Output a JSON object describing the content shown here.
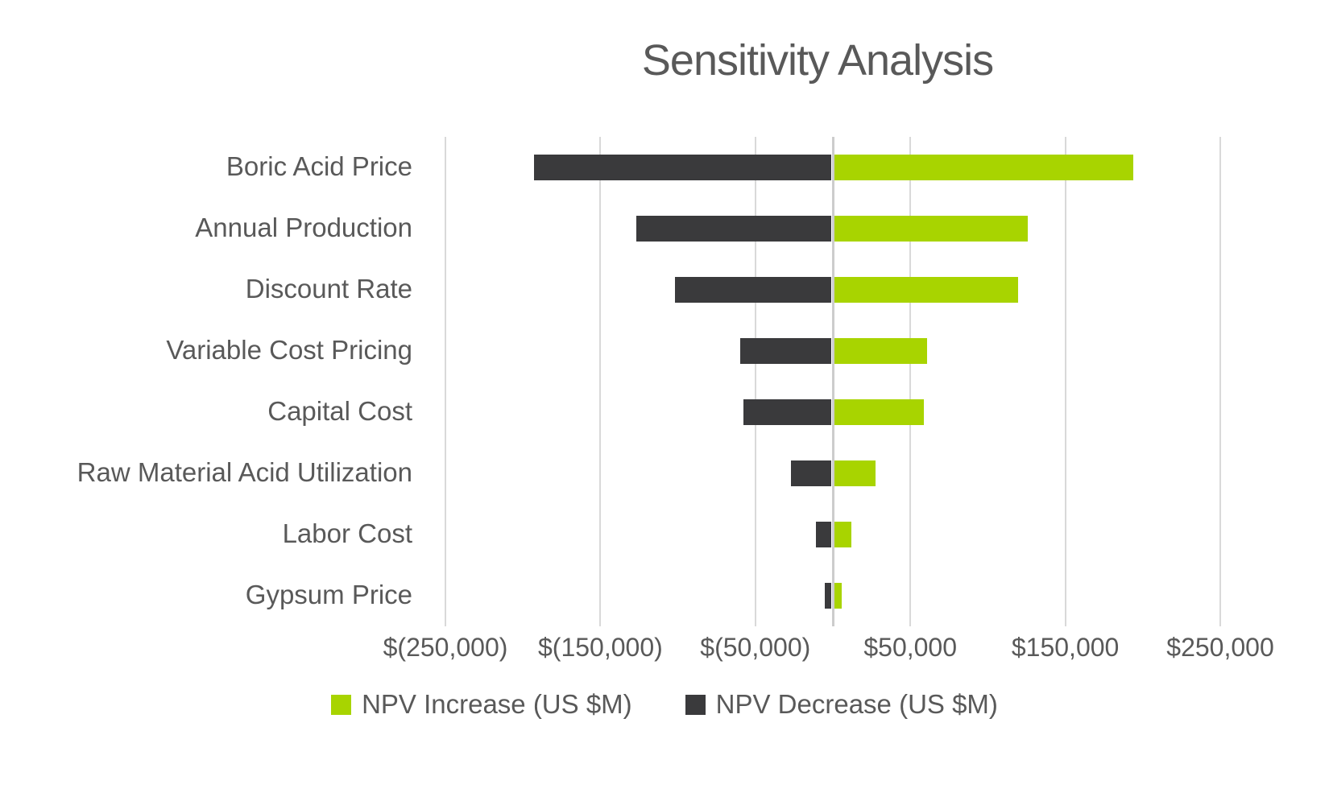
{
  "title": "Sensitivity Analysis",
  "colors": {
    "increase": "#a8d400",
    "decrease": "#3a3a3c",
    "gridline": "#d9d9d9",
    "zero_axis": "#cccccc",
    "text": "#595959"
  },
  "chart_data": {
    "type": "bar",
    "orientation": "horizontal-tornado",
    "title": "Sensitivity Analysis",
    "categories": [
      "Boric Acid Price",
      "Annual Production",
      "Discount Rate",
      "Variable Cost Pricing",
      "Capital Cost",
      "Raw Material Acid Utilization",
      "Labor Cost",
      "Gypsum Price"
    ],
    "series": [
      {
        "name": "NPV Increase (US $M)",
        "color": "#a8d400",
        "values": [
          193000,
          125000,
          119000,
          60000,
          58000,
          27000,
          11000,
          4700
        ]
      },
      {
        "name": "NPV Decrease (US $M)",
        "color": "#3a3a3c",
        "values": [
          -192000,
          -126000,
          -101000,
          -59000,
          -57000,
          -26000,
          -10000,
          -4300
        ]
      }
    ],
    "xlabel": "",
    "ylabel": "",
    "xlim": [
      -250000,
      250000
    ],
    "x_ticks": [
      {
        "value": -250000,
        "label": "$(250,000)"
      },
      {
        "value": -150000,
        "label": "$(150,000)"
      },
      {
        "value": -50000,
        "label": "$(50,000)"
      },
      {
        "value": 50000,
        "label": "$50,000"
      },
      {
        "value": 150000,
        "label": "$150,000"
      },
      {
        "value": 250000,
        "label": "$250,000"
      }
    ],
    "grid": true,
    "legend_position": "bottom"
  },
  "legend": {
    "items": [
      {
        "label": "NPV Increase (US $M)",
        "color": "#a8d400"
      },
      {
        "label": "NPV Decrease (US $M)",
        "color": "#3a3a3c"
      }
    ]
  }
}
